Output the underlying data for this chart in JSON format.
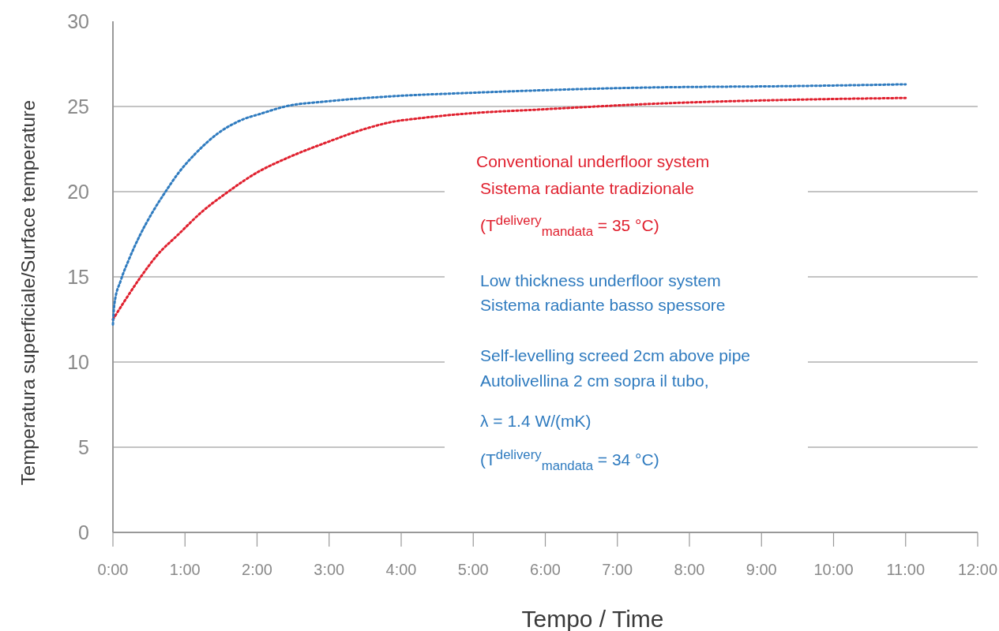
{
  "chart_data": {
    "type": "line",
    "xlabel": "Tempo / Time",
    "ylabel": "Temperatura superficiale/Surface temperature",
    "xlim": [
      0,
      12
    ],
    "ylim": [
      0,
      30
    ],
    "xticks": [
      {
        "value": 0,
        "label": "0:00"
      },
      {
        "value": 1,
        "label": "1:00"
      },
      {
        "value": 2,
        "label": "2:00"
      },
      {
        "value": 3,
        "label": "3:00"
      },
      {
        "value": 4,
        "label": "4:00"
      },
      {
        "value": 5,
        "label": "5:00"
      },
      {
        "value": 6,
        "label": "6:00"
      },
      {
        "value": 7,
        "label": "7:00"
      },
      {
        "value": 8,
        "label": "8:00"
      },
      {
        "value": 9,
        "label": "9:00"
      },
      {
        "value": 10,
        "label": "10:00"
      },
      {
        "value": 11,
        "label": "11:00"
      },
      {
        "value": 12,
        "label": "12:00"
      }
    ],
    "yticks": [
      0,
      5,
      10,
      15,
      20,
      25,
      30
    ],
    "grid": "y",
    "line_style": "dotted",
    "marker": "none",
    "series": [
      {
        "color": "#e0202e",
        "x": [
          0,
          0.18,
          0.37,
          0.62,
          0.91,
          1.23,
          1.6,
          1.99,
          2.43,
          2.97,
          3.51,
          3.88,
          4.24,
          4.96,
          5.82,
          7.75,
          9.5,
          11
        ],
        "values": [
          12.5,
          13.7,
          14.9,
          16.3,
          17.5,
          18.8,
          20.0,
          21.1,
          22.0,
          22.9,
          23.7,
          24.1,
          24.3,
          24.6,
          24.8,
          25.2,
          25.4,
          25.5
        ]
      },
      {
        "color": "#2f7bbf",
        "x": [
          0,
          0.02,
          0.11,
          0.22,
          0.37,
          0.55,
          0.73,
          0.91,
          1.16,
          1.45,
          1.78,
          2.07,
          2.39,
          2.97,
          3.88,
          4.96,
          7.27,
          9.5,
          11
        ],
        "values": [
          12.2,
          13.4,
          14.8,
          16.0,
          17.4,
          18.8,
          20.0,
          21.1,
          22.3,
          23.4,
          24.2,
          24.6,
          25.0,
          25.3,
          25.6,
          25.8,
          26.1,
          26.2,
          26.3
        ]
      }
    ],
    "annotations": [
      "Conventional underfloor system",
      "Sistema radiante tradizionale",
      "(T$^{delivery}$$_{mandata}$ = 35 °C)",
      "Low thickness underfloor system",
      "Sistema radiante basso spessore",
      "Self-levelling screed 2cm above pipe",
      "Autolivellina 2 cm sopra il tubo,",
      "λ = 1.4 W/(mK)",
      "(T$^{delivery}$$_{mandata}$ = 34 °C)"
    ]
  }
}
